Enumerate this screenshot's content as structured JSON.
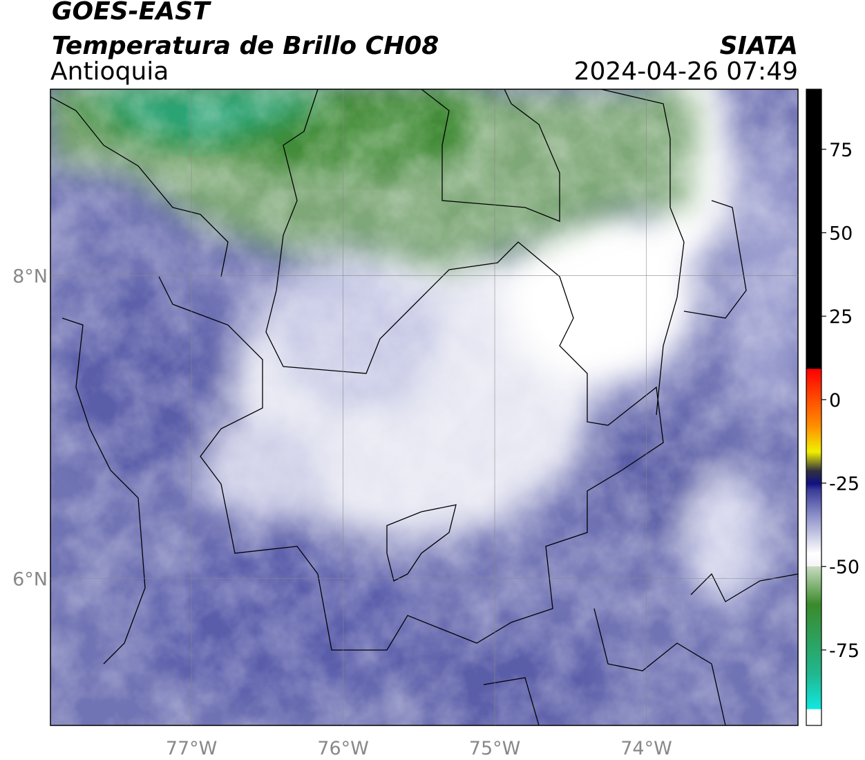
{
  "title": "GOES-EAST",
  "subtitle": "Temperatura de Brillo CH08",
  "region": "Antioquia",
  "source": "SIATA",
  "timestamp": "2024-04-26 07:49",
  "map": {
    "xlim": [
      -77.93,
      -73.0
    ],
    "ylim": [
      5.03,
      9.23
    ],
    "xticks": [
      {
        "value": -77,
        "label": "77°W"
      },
      {
        "value": -76,
        "label": "76°W"
      },
      {
        "value": -75,
        "label": "75°W"
      },
      {
        "value": -74,
        "label": "74°W"
      }
    ],
    "yticks": [
      {
        "value": 6,
        "label": "6°N"
      },
      {
        "value": 8,
        "label": "8°N"
      }
    ],
    "grid": true
  },
  "colorbar": {
    "clim": [
      -97.6,
      93
    ],
    "ticks": [
      -75,
      -50,
      -25,
      0,
      25,
      50,
      75
    ]
  }
}
